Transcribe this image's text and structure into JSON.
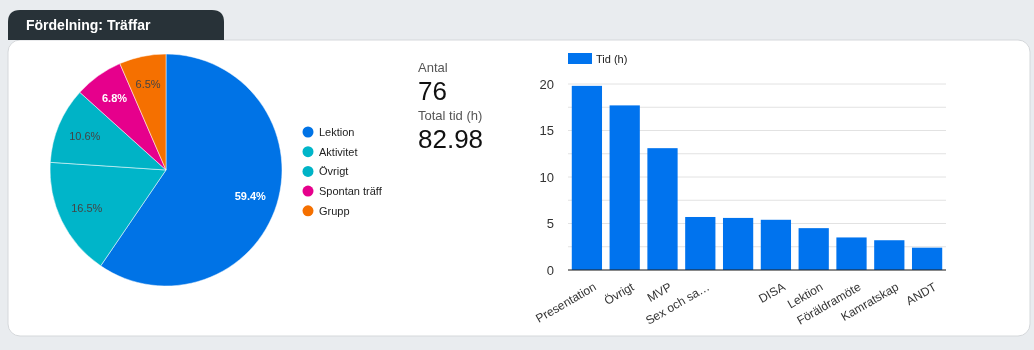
{
  "chart_data": [
    {
      "type": "pie",
      "title": "Fördelning: Träffar",
      "categories": [
        "Lektion",
        "Aktivitet",
        "Övrigt",
        "Spontan träff",
        "Grupp"
      ],
      "values": [
        59.4,
        16.5,
        10.6,
        6.8,
        6.5
      ],
      "colors": [
        "#0073e6",
        "#00b5c9",
        "#00b3c6",
        "#e6008c",
        "#f57000"
      ],
      "value_labels": [
        "59.4%",
        "16.5%",
        "10.6%",
        "6.8%",
        "6.5%"
      ],
      "legend": "right"
    },
    {
      "type": "other",
      "annotations": [
        "Antal",
        "76",
        "Total tid (h)",
        "82.98"
      ]
    },
    {
      "type": "bar",
      "categories": [
        "Presentation",
        "Övrigt",
        "MVP",
        "Sex och sa…",
        null,
        "DISA",
        "Lektion",
        "Föräldramöte",
        "Kamratskap",
        "ANDT"
      ],
      "series": [
        {
          "name": "Tid (h)",
          "color": "#0073ee",
          "values": [
            19.8,
            17.7,
            13.1,
            5.7,
            5.6,
            5.4,
            4.5,
            3.5,
            3.2,
            2.4
          ]
        }
      ],
      "ylim": [
        0,
        20
      ],
      "yticks": [
        0,
        {
          "value": 2.5,
          "label": null
        },
        5,
        {
          "value": 7.5,
          "label": null
        },
        10,
        {
          "value": 12.5,
          "label": null
        },
        15,
        {
          "value": 17.5,
          "label": null
        },
        20
      ],
      "grid": "y",
      "legend": "top left"
    }
  ]
}
